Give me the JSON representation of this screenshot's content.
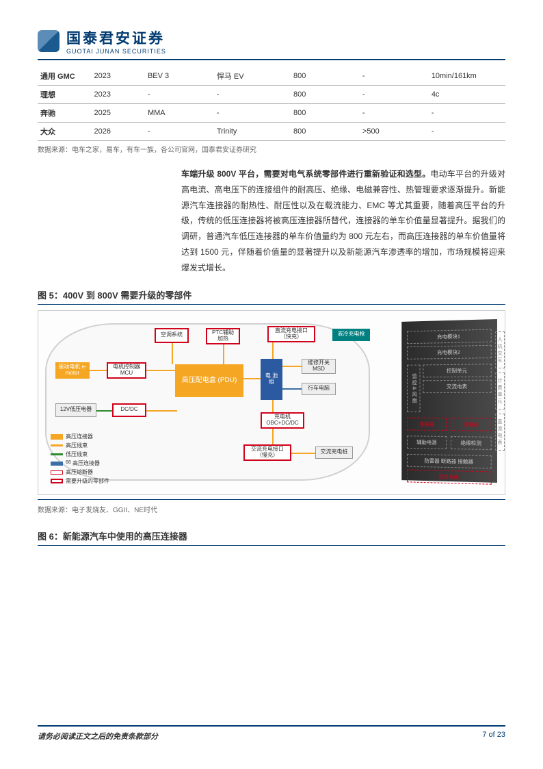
{
  "header": {
    "company_cn": "国泰君安证券",
    "company_en": "GUOTAI JUNAN SECURITIES"
  },
  "table": {
    "rows": [
      [
        "通用 GMC",
        "2023",
        "BEV 3",
        "悍马 EV",
        "800",
        "-",
        "10min/161km"
      ],
      [
        "理想",
        "2023",
        "-",
        "-",
        "800",
        "-",
        "4c"
      ],
      [
        "奔驰",
        "2025",
        "MMA",
        "-",
        "800",
        "-",
        "-"
      ],
      [
        "大众",
        "2026",
        "-",
        "Trinity",
        "800",
        ">500",
        "-"
      ]
    ],
    "source": "数据来源：电车之家，易车，有车一族，各公司官网，国泰君安证券研究"
  },
  "paragraph": {
    "bold": "车端升级 800V 平台，需要对电气系统零部件进行重新验证和选型。",
    "text": "电动车平台的升级对高电流、高电压下的连接组件的耐高压、绝缘、电磁兼容性、热管理要求逐渐提升。新能源汽车连接器的耐热性、耐压性以及在载流能力、EMC 等尤其重要，随着高压平台的升级，传统的低压连接器将被高压连接器所替代，连接器的单车价值量显著提升。据我们的调研，普通汽车低压连接器的单车价值量约为 800 元左右，而高压连接器的单车价值量将达到 1500 元，伴随着价值量的显著提升以及新能源汽车渗透率的增加，市场规模将迎来爆发式增长。"
  },
  "fig5": {
    "title": "图 5：400V 到 800V 需要升级的零部件",
    "source": "数据来源：电子发烧友、GGII、NE时代",
    "nodes": {
      "motor": "驱动电机\ne-motor",
      "mcu": "电机控制器\nMCU",
      "ac": "空调系统",
      "ptc": "PTC辅助\n加热",
      "pdu": "高压配电盒\n(PDU)",
      "battery": "电\n池\n组",
      "lv12": "12V低压电器",
      "dcdc": "DC/DC",
      "obc": "充电机\nOBC+DC/DC",
      "dc_port": "直流充电接口\n（快充）",
      "ac_port": "交流充电接口\n（慢充）",
      "ac_pile": "交流充电桩",
      "msd": "维修开关\nMSD",
      "ecu": "行车电脑",
      "liquid_gun": "液冷充电枪"
    },
    "legend": {
      "hv_conn": "高压连接器",
      "hv_harness": "高压线束",
      "lv_harness": "低压线束",
      "hv_conn2": "高压连接器",
      "hv_fuse": "高压熔断器",
      "upgrade": "需要升级的零部件"
    },
    "cabinet": {
      "mod1": "充电模块1",
      "mod2": "充电模块2",
      "monitor": "监 控 & 风 扇",
      "ctrl": "控制单元",
      "ac_meter": "交流电表",
      "contact1": "接触器",
      "contact2": "接触器",
      "aux": "辅助电源",
      "insul": "绝缘检测",
      "spd": "防雷器 断路器 接触器",
      "cooling": "液冷系统",
      "side1": "人机交互",
      "side2": "计费单元",
      "side3": "直流电表"
    }
  },
  "fig6": {
    "title": "图 6：新能源汽车中使用的高压连接器"
  },
  "footer": {
    "left": "请务必阅读正文之后的免责条款部分",
    "right": "7 of 23"
  },
  "colors": {
    "brand": "#003a70",
    "orange": "#f5a623",
    "red": "#d0021b",
    "blue_node": "#2c5aa0",
    "green_line": "#2e8b2e",
    "blue_line": "#3a6ea5"
  }
}
